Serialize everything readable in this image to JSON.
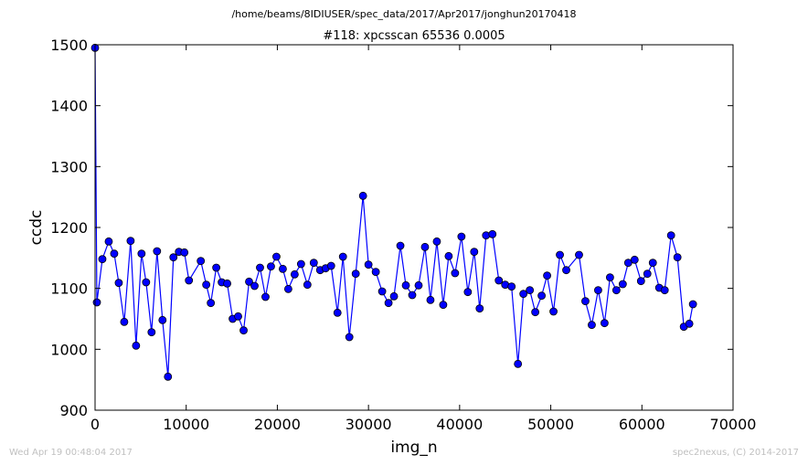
{
  "chart_data": {
    "type": "line",
    "suptitle": "/home/beams/8IDIUSER/spec_data/2017/Apr2017/jonghun20170418",
    "title": "#118: xpcsscan 65536 0.0005",
    "xlabel": "img_n",
    "ylabel": "ccdc",
    "xlim": [
      0,
      70000
    ],
    "ylim": [
      900,
      1500
    ],
    "xticks": [
      "0",
      "10000",
      "20000",
      "30000",
      "40000",
      "50000",
      "60000",
      "70000"
    ],
    "yticks": [
      "900",
      "1000",
      "1100",
      "1200",
      "1300",
      "1400",
      "1500"
    ],
    "grid": false,
    "line_color": "#0000ff",
    "marker_color": "#0000ff",
    "x": [
      0,
      200,
      800,
      1500,
      2100,
      2600,
      3200,
      3900,
      4500,
      5100,
      5600,
      6200,
      6800,
      7400,
      8000,
      8600,
      9200,
      9800,
      10300,
      11600,
      12200,
      12700,
      13300,
      13900,
      14500,
      15100,
      15700,
      16300,
      16900,
      17500,
      18100,
      18700,
      19300,
      19900,
      20600,
      21200,
      21900,
      22600,
      23300,
      24000,
      24700,
      25300,
      25900,
      26600,
      27200,
      27900,
      28600,
      29400,
      30000,
      30800,
      31500,
      32200,
      32800,
      33500,
      34100,
      34800,
      35500,
      36200,
      36800,
      37500,
      38200,
      38800,
      39500,
      40200,
      40900,
      41600,
      42200,
      42900,
      43600,
      44300,
      45000,
      45700,
      46400,
      47000,
      47700,
      48300,
      49000,
      49600,
      50300,
      51000,
      51700,
      53100,
      53800,
      54500,
      55200,
      55900,
      56500,
      57200,
      57900,
      58500,
      59200,
      59900,
      60600,
      61200,
      61900,
      62500,
      63200,
      63900,
      64600,
      65200,
      65600
    ],
    "y": [
      1495,
      1077,
      1148,
      1177,
      1157,
      1109,
      1045,
      1178,
      1006,
      1157,
      1110,
      1028,
      1161,
      1048,
      955,
      1151,
      1160,
      1159,
      1113,
      1145,
      1106,
      1076,
      1134,
      1110,
      1108,
      1050,
      1054,
      1031,
      1111,
      1104,
      1134,
      1086,
      1136,
      1152,
      1132,
      1099,
      1123,
      1140,
      1106,
      1142,
      1130,
      1133,
      1137,
      1060,
      1152,
      1020,
      1124,
      1252,
      1139,
      1127,
      1095,
      1076,
      1087,
      1170,
      1105,
      1089,
      1105,
      1168,
      1081,
      1177,
      1073,
      1153,
      1125,
      1185,
      1094,
      1160,
      1067,
      1187,
      1189,
      1113,
      1106,
      1103,
      976,
      1091,
      1097,
      1061,
      1088,
      1121,
      1062,
      1155,
      1130,
      1155,
      1079,
      1040,
      1097,
      1043,
      1118,
      1097,
      1107,
      1142,
      1147,
      1112,
      1124,
      1142,
      1101,
      1097,
      1187,
      1151,
      1037,
      1042,
      1074
    ]
  },
  "footer": {
    "timestamp": "Wed Apr 19 00:48:04 2017",
    "credit": "spec2nexus, (C) 2014-2017"
  }
}
